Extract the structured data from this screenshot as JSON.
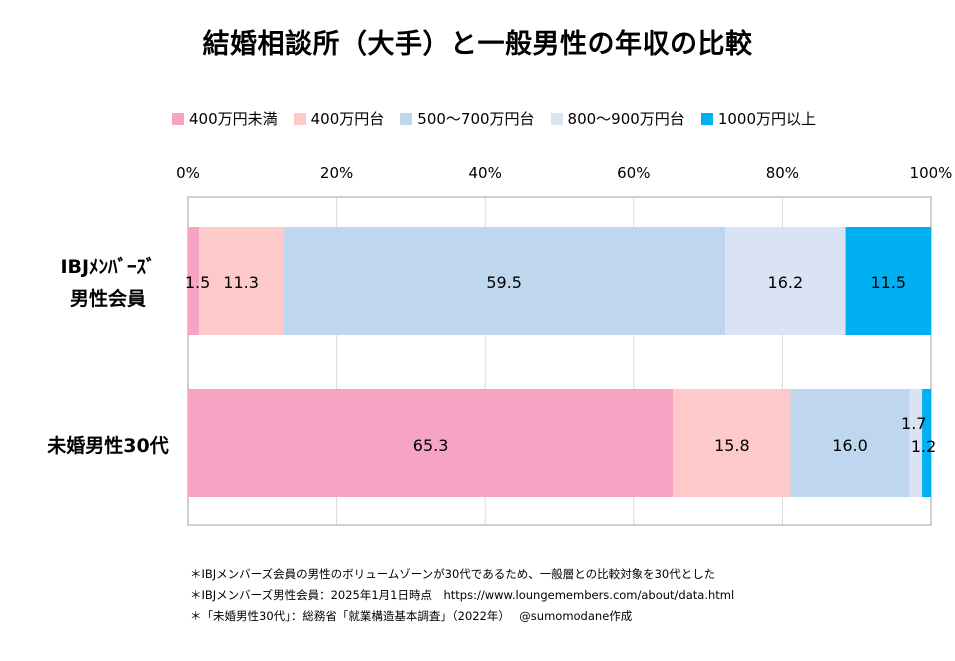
{
  "chart_data": {
    "type": "bar",
    "orientation": "horizontal",
    "stacked": true,
    "title": "結婚相談所（大手）と一般男性の年収の比較",
    "categories": [
      {
        "lines": [
          "IBJﾒﾝﾊﾞｰｽﾞ",
          "男性会員"
        ]
      },
      {
        "lines": [
          "未婚男性30代"
        ]
      }
    ],
    "series": [
      {
        "name": "400万円未満",
        "color": "#f7a3c4",
        "values": [
          1.5,
          65.3
        ]
      },
      {
        "name": "400万円台",
        "color": "#fdc9c9",
        "values": [
          11.3,
          15.8
        ]
      },
      {
        "name": "500～700万円台",
        "color": "#bed7ee",
        "values": [
          59.5,
          16.0
        ]
      },
      {
        "name": "800～900万円台",
        "color": "#dae3f3",
        "values": [
          16.2,
          1.7
        ]
      },
      {
        "name": "1000万円以上",
        "color": "#00b0f0",
        "values": [
          11.5,
          1.2
        ]
      }
    ],
    "value_labels": [
      [
        "1.5",
        "11.3",
        "59.5",
        "16.2",
        "11.5"
      ],
      [
        "65.3",
        "15.8",
        "16.0",
        "1.7",
        "1.2"
      ]
    ],
    "xlim": [
      0,
      100
    ],
    "xticks": [
      "0%",
      "20%",
      "40%",
      "60%",
      "80%",
      "100%"
    ],
    "grid": true,
    "legend_position": "top"
  },
  "notes": [
    "＊IBJメンバーズ会員の男性のボリュームゾーンが30代であるため、一般層との比較対象を30代とした",
    "＊IBJメンバーズ男性会員：2025年1月1日時点　https://www.loungemembers.com/about/data.html",
    "＊「未婚男性30代」：総務省「就業構造基本調査」（2022年）　 @sumomodane作成"
  ]
}
